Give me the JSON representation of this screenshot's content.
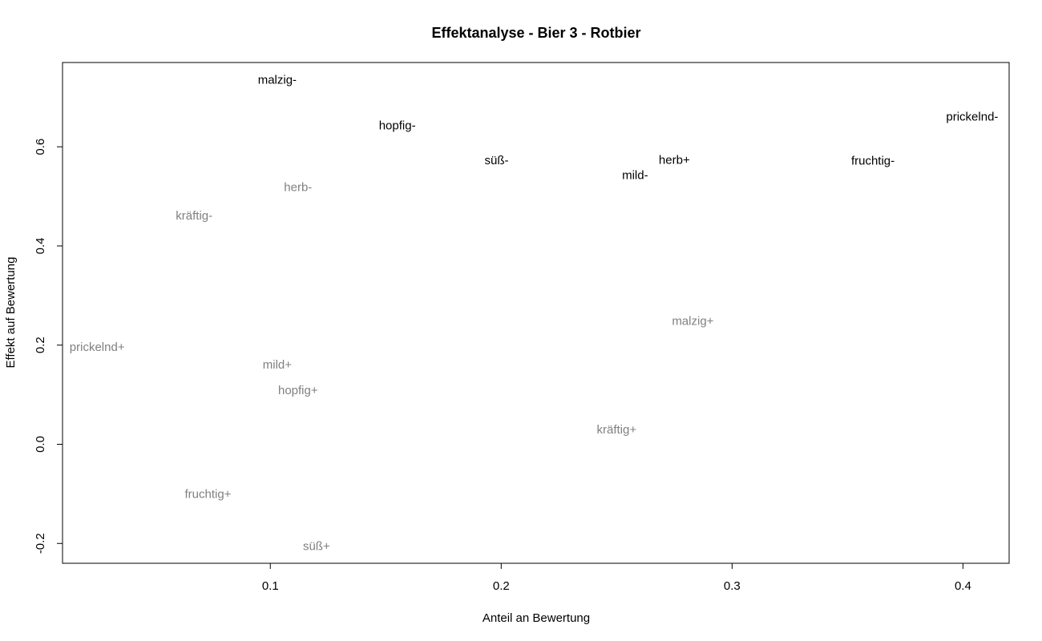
{
  "chart_data": {
    "type": "scatter",
    "title": "Effektanalyse - Bier 3 - Rotbier",
    "xlabel": "Anteil an Bewertung",
    "ylabel": "Effekt auf Bewertung",
    "xlim": [
      0.01,
      0.42
    ],
    "ylim": [
      -0.24,
      0.77
    ],
    "x_ticks": [
      0.1,
      0.2,
      0.3,
      0.4
    ],
    "x_tick_labels": [
      "0.1",
      "0.2",
      "0.3",
      "0.4"
    ],
    "y_ticks": [
      -0.2,
      0.0,
      0.2,
      0.4,
      0.6
    ],
    "y_tick_labels": [
      "-0.2",
      "0.0",
      "0.2",
      "0.4",
      "0.6"
    ],
    "grid": false,
    "series_colors": {
      "negative_effect": "#000000",
      "positive_effect": "#808080"
    },
    "points": [
      {
        "label": "malzig-",
        "x": 0.103,
        "y": 0.735,
        "group": "negative_effect"
      },
      {
        "label": "hopfig-",
        "x": 0.155,
        "y": 0.643,
        "group": "negative_effect"
      },
      {
        "label": "süß-",
        "x": 0.198,
        "y": 0.573,
        "group": "negative_effect"
      },
      {
        "label": "mild-",
        "x": 0.258,
        "y": 0.543,
        "group": "negative_effect"
      },
      {
        "label": "herb+",
        "x": 0.275,
        "y": 0.574,
        "group": "negative_effect"
      },
      {
        "label": "fruchtig-",
        "x": 0.361,
        "y": 0.572,
        "group": "negative_effect"
      },
      {
        "label": "prickelnd-",
        "x": 0.404,
        "y": 0.661,
        "group": "negative_effect"
      },
      {
        "label": "herb-",
        "x": 0.112,
        "y": 0.519,
        "group": "positive_effect"
      },
      {
        "label": "kräftig-",
        "x": 0.067,
        "y": 0.461,
        "group": "positive_effect"
      },
      {
        "label": "malzig+",
        "x": 0.283,
        "y": 0.249,
        "group": "positive_effect"
      },
      {
        "label": "prickelnd+",
        "x": 0.025,
        "y": 0.196,
        "group": "positive_effect"
      },
      {
        "label": "mild+",
        "x": 0.103,
        "y": 0.161,
        "group": "positive_effect"
      },
      {
        "label": "hopfig+",
        "x": 0.112,
        "y": 0.109,
        "group": "positive_effect"
      },
      {
        "label": "kräftig+",
        "x": 0.25,
        "y": 0.03,
        "group": "positive_effect"
      },
      {
        "label": "fruchtig+",
        "x": 0.073,
        "y": -0.1,
        "group": "positive_effect"
      },
      {
        "label": "süß+",
        "x": 0.12,
        "y": -0.205,
        "group": "positive_effect"
      }
    ]
  }
}
